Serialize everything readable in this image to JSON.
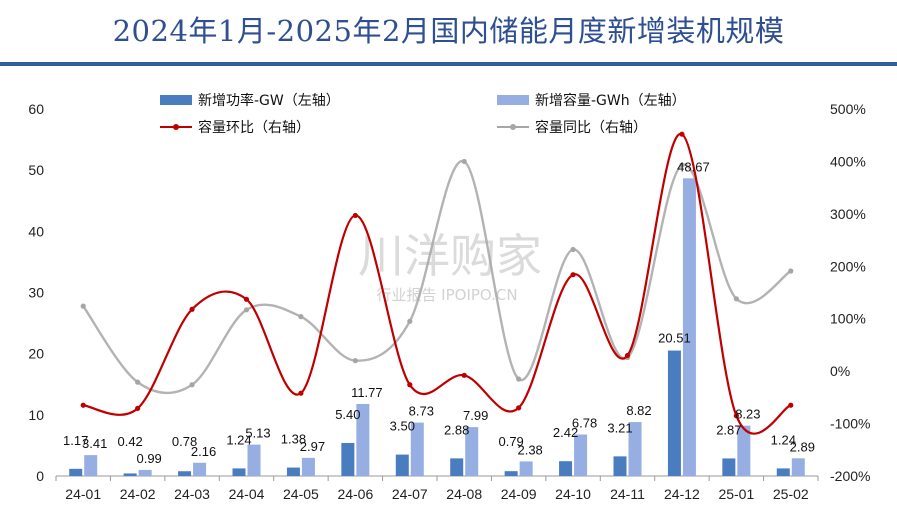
{
  "title": "2024年1月-2025年2月国内储能月度新增装机规模",
  "watermark": {
    "main": "川洋购家",
    "sub": "行业报告 IPOIPO.CN"
  },
  "colors": {
    "title": "#2f4f93",
    "rule": "#355d9e",
    "power": "#4a7cc0",
    "capacity": "#96aee2",
    "mom": "#c00000",
    "yoy": "#a6a6a6"
  },
  "chart_data": {
    "type": "bar",
    "categories": [
      "24-01",
      "24-02",
      "24-03",
      "24-04",
      "24-05",
      "24-06",
      "24-07",
      "24-08",
      "24-09",
      "24-10",
      "24-11",
      "24-12",
      "25-01",
      "25-02"
    ],
    "left_ylim": [
      0,
      60
    ],
    "left_ticks": [
      "0",
      "10",
      "20",
      "30",
      "40",
      "50",
      "60"
    ],
    "right_ylim": [
      -200,
      500
    ],
    "right_ticks": [
      "-200%",
      "-100%",
      "0%",
      "100%",
      "200%",
      "300%",
      "400%",
      "500%"
    ],
    "legend_placement": "top",
    "series": [
      {
        "name": "新增功率-GW（左轴）",
        "kind": "bar",
        "axis": "left",
        "values": [
          1.17,
          0.42,
          0.78,
          1.24,
          1.38,
          5.4,
          3.5,
          2.88,
          0.79,
          2.42,
          3.21,
          20.51,
          2.87,
          1.24
        ],
        "labels": [
          "1.17",
          "0.42",
          "0.78",
          "1.24",
          "1.38",
          "5.40",
          "3.50",
          "2.88",
          "0.79",
          "2.42",
          "3.21",
          "20.51",
          "2.87",
          "1.24"
        ]
      },
      {
        "name": "新增容量-GWh（左轴）",
        "kind": "bar",
        "axis": "left",
        "values": [
          3.41,
          0.99,
          2.16,
          5.13,
          2.97,
          11.77,
          8.73,
          7.99,
          2.38,
          6.78,
          8.82,
          48.67,
          8.23,
          2.89
        ],
        "labels": [
          "3.41",
          "0.99",
          "2.16",
          "5.13",
          "2.97",
          "11.77",
          "8.73",
          "7.99",
          "2.38",
          "6.78",
          "8.82",
          "48.67",
          "8.23",
          "2.89"
        ]
      },
      {
        "name": "容量环比（右轴）",
        "kind": "line",
        "axis": "right",
        "smooth": true,
        "markers": true,
        "values": [
          -65,
          -71,
          118,
          137,
          -42,
          297,
          -26,
          -8,
          -70,
          184,
          30,
          452,
          -85,
          -65
        ]
      },
      {
        "name": "容量同比（右轴）",
        "kind": "line",
        "axis": "right",
        "smooth": true,
        "markers": true,
        "values": [
          124,
          -21,
          -26,
          117,
          104,
          20,
          95,
          400,
          -15,
          232,
          26,
          393,
          138,
          191
        ]
      }
    ]
  }
}
